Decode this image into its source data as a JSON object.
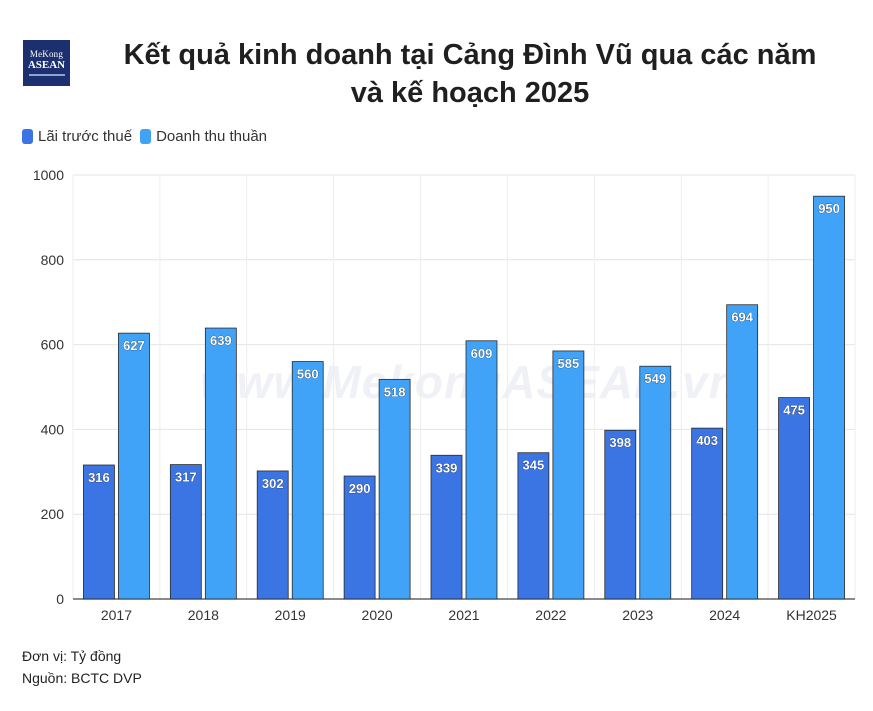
{
  "logo": {
    "line1": "MeKong",
    "line2": "ASEAN"
  },
  "title_line1": "Kết quả kinh doanh tại Cảng Đình Vũ qua các năm",
  "title_line2": "và kế hoạch 2025",
  "watermark": "www.MekongASEAN.vn",
  "footer": {
    "unit": "Đơn vị: Tỷ đồng",
    "source": "Nguồn: BCTC DVP"
  },
  "colors": {
    "series1": "#3b74e3",
    "series2": "#41a3f7",
    "grid": "#e4e4e4",
    "axis": "#444444"
  },
  "chart_data": {
    "type": "bar",
    "categories": [
      "2017",
      "2018",
      "2019",
      "2020",
      "2021",
      "2022",
      "2023",
      "2024",
      "KH2025"
    ],
    "series": [
      {
        "name": "Lãi trước thuế",
        "values": [
          316,
          317,
          302,
          290,
          339,
          345,
          398,
          403,
          475
        ]
      },
      {
        "name": "Doanh thu thuần",
        "values": [
          627,
          639,
          560,
          518,
          609,
          585,
          549,
          694,
          950
        ]
      }
    ],
    "ylim": [
      0,
      1000
    ],
    "yticks": [
      0,
      200,
      400,
      600,
      800,
      1000
    ],
    "grid": true,
    "legend": "top-left",
    "xlabel": "",
    "ylabel": ""
  }
}
